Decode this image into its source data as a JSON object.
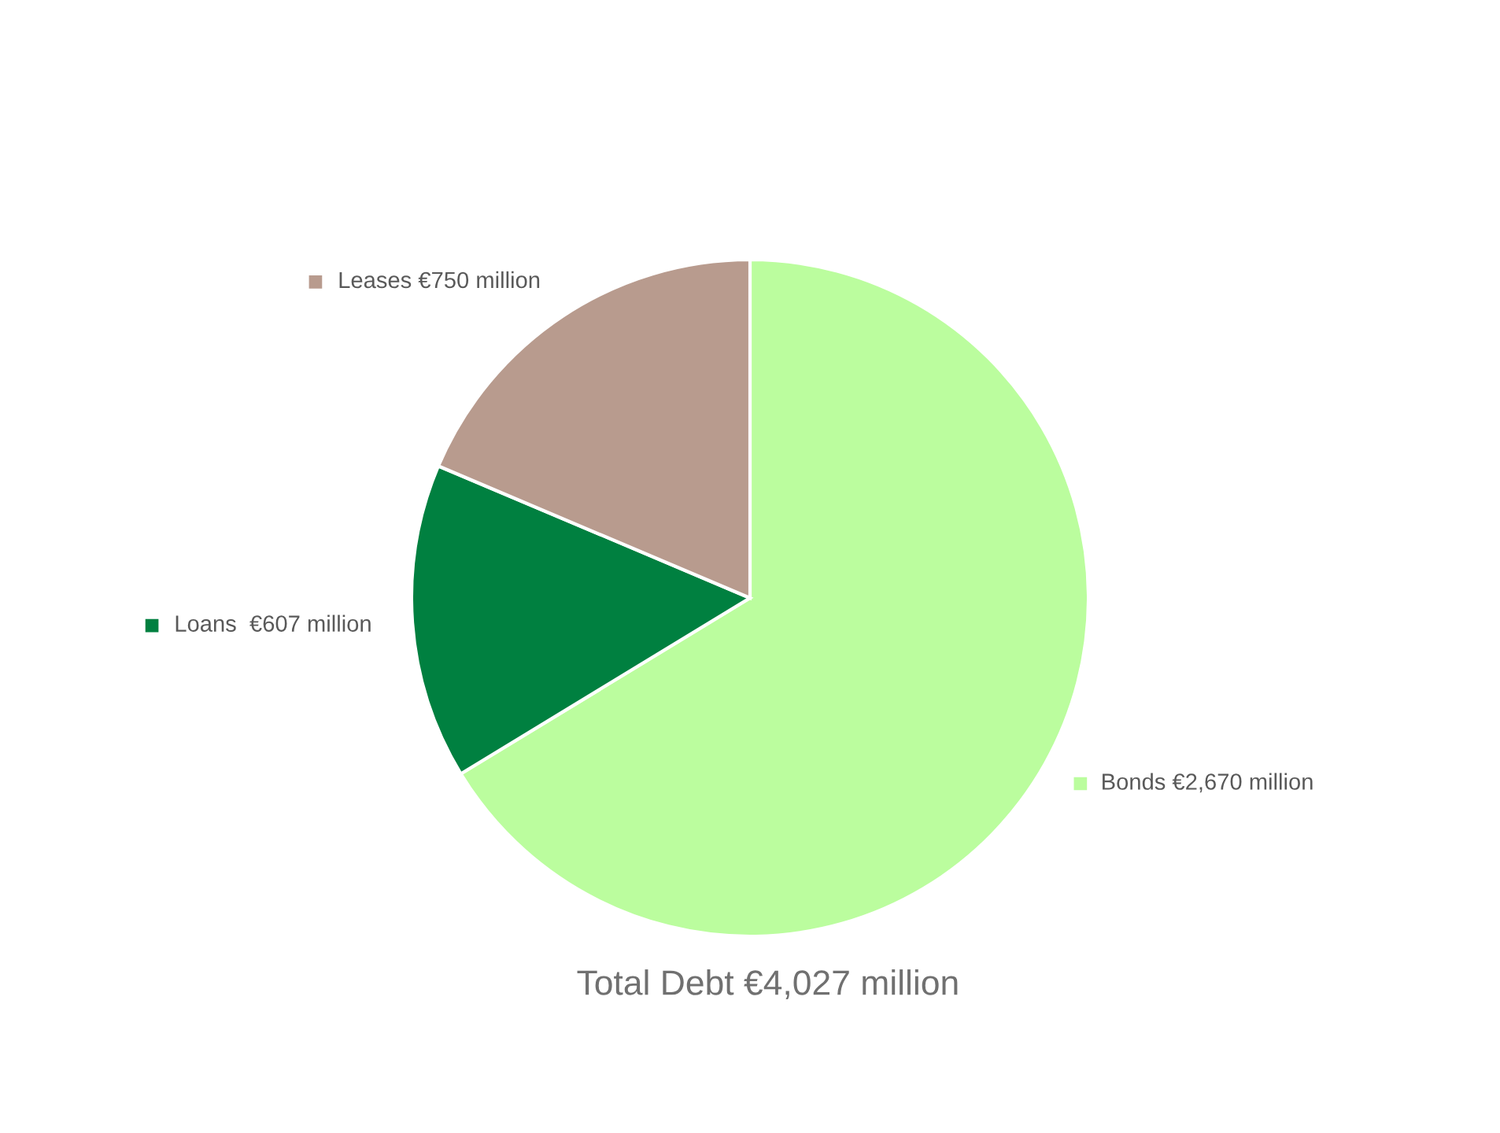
{
  "chart_data": {
    "type": "pie",
    "title": "Total Debt €4,027 million",
    "categories": [
      "Bonds",
      "Loans ",
      "Leases"
    ],
    "values": [
      2670,
      607,
      750
    ],
    "value_labels": [
      "€2,670 million",
      "€607 million",
      "€750 million"
    ],
    "colors": [
      "#bbfd9e",
      "#008040",
      "#b89b8e"
    ],
    "legend": "left"
  }
}
